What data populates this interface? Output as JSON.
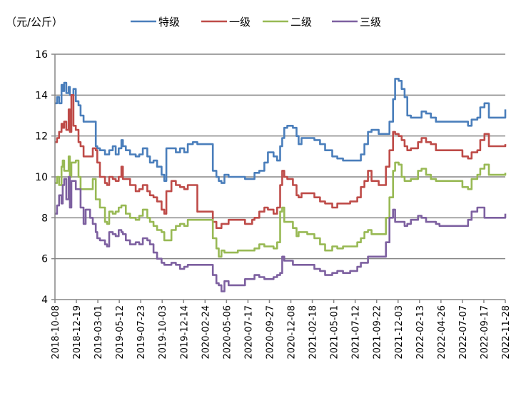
{
  "chart_data": {
    "type": "line",
    "unit_label": "（元/公斤）",
    "ylim": [
      4,
      16
    ],
    "yticks": [
      "4",
      "6",
      "8",
      "10",
      "12",
      "14",
      "16"
    ],
    "ytick_values": [
      4,
      6,
      8,
      10,
      12,
      14,
      16
    ],
    "grid": true,
    "legend_position": "top",
    "x_start_date": "2018-10-08",
    "x_unit": "days since 2018-10-08",
    "xlim": [
      0,
      1512
    ],
    "xtick_labels": [
      "2018-10-08",
      "2018-12-19",
      "2019-03-01",
      "2019-05-12",
      "2019-07-23",
      "2019-10-03",
      "2019-12-14",
      "2020-02-24",
      "2020-05-06",
      "2020-07-17",
      "2020-09-27",
      "2020-12-08",
      "2021-02-18",
      "2021-05-01",
      "2021-07-12",
      "2021-09-22",
      "2021-12-03",
      "2022-02-13",
      "2022-04-26",
      "2022-07-07",
      "2022-09-17",
      "2022-11-28"
    ],
    "xtick_days": [
      0,
      72,
      144,
      216,
      288,
      360,
      432,
      504,
      576,
      648,
      720,
      792,
      864,
      936,
      1008,
      1080,
      1152,
      1224,
      1296,
      1368,
      1440,
      1512
    ],
    "x": [
      0,
      7,
      14,
      22,
      26,
      31,
      38,
      46,
      50,
      55,
      62,
      70,
      79,
      86,
      96,
      103,
      118,
      127,
      137,
      142,
      151,
      168,
      175,
      182,
      194,
      204,
      214,
      223,
      228,
      238,
      252,
      271,
      283,
      295,
      310,
      319,
      331,
      343,
      358,
      367,
      374,
      391,
      406,
      420,
      434,
      446,
      463,
      478,
      530,
      542,
      550,
      559,
      569,
      583,
      614,
      638,
      662,
      670,
      686,
      703,
      715,
      734,
      746,
      756,
      763,
      770,
      780,
      799,
      811,
      818,
      828,
      847,
      871,
      890,
      907,
      931,
      948,
      967,
      991,
      1015,
      1027,
      1039,
      1051,
      1063,
      1087,
      1111,
      1123,
      1135,
      1142,
      1154,
      1164,
      1174,
      1183,
      1195,
      1219,
      1231,
      1246,
      1262,
      1279,
      1291,
      1351,
      1368,
      1387,
      1399,
      1418,
      1428,
      1442,
      1457,
      1483,
      1512
    ],
    "series": [
      {
        "name": "特级",
        "color": "#4a7ebb",
        "values": [
          13.6,
          13.9,
          13.6,
          14.5,
          14.2,
          14.6,
          14.1,
          14.4,
          14.0,
          14.0,
          14.3,
          13.7,
          13.5,
          13.0,
          12.7,
          12.7,
          12.7,
          12.7,
          11.5,
          11.4,
          11.3,
          11.1,
          11.1,
          11.3,
          11.5,
          11.1,
          11.4,
          11.8,
          11.5,
          11.3,
          11.1,
          11.0,
          11.1,
          11.4,
          11.0,
          10.7,
          10.8,
          10.5,
          10.1,
          9.8,
          11.4,
          11.4,
          11.2,
          11.4,
          11.2,
          11.6,
          11.7,
          11.6,
          10.3,
          10.0,
          9.8,
          9.7,
          10.1,
          10.0,
          10.0,
          9.9,
          9.9,
          10.2,
          10.3,
          10.7,
          11.2,
          11.0,
          10.8,
          11.5,
          11.9,
          12.4,
          12.5,
          12.4,
          12.0,
          11.6,
          11.9,
          11.9,
          11.8,
          11.6,
          11.3,
          11.0,
          10.9,
          10.8,
          10.8,
          10.8,
          11.1,
          11.6,
          12.2,
          12.3,
          12.1,
          12.1,
          12.7,
          13.8,
          14.8,
          14.7,
          14.3,
          13.9,
          13.0,
          12.9,
          12.9,
          13.2,
          13.1,
          12.9,
          12.7,
          12.7,
          12.7,
          12.7,
          12.5,
          12.8,
          12.9,
          13.4,
          13.6,
          12.9,
          12.9,
          13.3
        ]
      },
      {
        "name": "一级",
        "color": "#be4b48",
        "values": [
          11.7,
          11.9,
          12.2,
          12.6,
          12.4,
          12.7,
          12.3,
          13.3,
          12.2,
          14.0,
          12.5,
          12.3,
          11.7,
          11.5,
          11.0,
          11.0,
          11.0,
          11.4,
          11.3,
          10.7,
          10.0,
          9.7,
          9.6,
          10.0,
          9.9,
          9.8,
          10.0,
          10.5,
          9.9,
          9.9,
          9.6,
          9.3,
          9.4,
          9.6,
          9.3,
          9.1,
          9.0,
          8.8,
          8.4,
          8.2,
          9.3,
          9.8,
          9.6,
          9.5,
          9.4,
          9.6,
          9.6,
          8.3,
          7.8,
          7.5,
          7.5,
          7.7,
          7.7,
          7.9,
          7.9,
          7.7,
          7.9,
          8.0,
          8.3,
          8.5,
          8.4,
          8.2,
          8.5,
          9.6,
          10.3,
          10.0,
          9.9,
          9.6,
          9.1,
          9.0,
          9.2,
          9.2,
          9.0,
          8.8,
          8.7,
          8.5,
          8.7,
          8.7,
          8.8,
          9.0,
          9.5,
          9.8,
          10.3,
          9.8,
          9.6,
          10.5,
          11.3,
          12.2,
          12.1,
          12.0,
          11.8,
          11.5,
          11.3,
          11.4,
          11.7,
          11.9,
          11.7,
          11.6,
          11.3,
          11.3,
          11.3,
          11.0,
          10.9,
          11.2,
          11.3,
          11.8,
          12.1,
          11.5,
          11.5,
          11.6
        ]
      },
      {
        "name": "二级",
        "color": "#98b954",
        "values": [
          9.7,
          10.0,
          9.6,
          10.5,
          10.8,
          10.3,
          10.3,
          11.0,
          10.0,
          10.7,
          10.7,
          10.8,
          10.0,
          9.4,
          9.4,
          9.4,
          9.4,
          9.9,
          8.9,
          8.9,
          8.5,
          7.8,
          7.7,
          8.3,
          8.2,
          8.3,
          8.5,
          8.6,
          8.6,
          8.2,
          8.0,
          7.9,
          8.1,
          8.4,
          8.0,
          7.8,
          7.6,
          7.4,
          7.3,
          6.9,
          6.9,
          7.4,
          7.6,
          7.7,
          7.6,
          7.9,
          7.9,
          7.9,
          7.0,
          6.5,
          6.1,
          6.4,
          6.3,
          6.3,
          6.4,
          6.4,
          6.4,
          6.5,
          6.7,
          6.6,
          6.6,
          6.5,
          6.8,
          8.3,
          8.5,
          7.8,
          7.8,
          7.5,
          7.1,
          7.3,
          7.3,
          7.2,
          7.0,
          6.7,
          6.4,
          6.6,
          6.5,
          6.6,
          6.6,
          6.8,
          7.0,
          7.3,
          7.4,
          7.2,
          7.2,
          8.0,
          9.0,
          10.3,
          10.7,
          10.6,
          10.0,
          9.8,
          9.8,
          9.9,
          10.3,
          10.4,
          10.1,
          9.9,
          9.8,
          9.8,
          9.8,
          9.5,
          9.4,
          9.9,
          10.1,
          10.4,
          10.6,
          10.1,
          10.1,
          10.2
        ]
      },
      {
        "name": "三级",
        "color": "#7d60a0",
        "values": [
          8.2,
          8.6,
          9.1,
          8.7,
          9.6,
          9.9,
          8.9,
          10.0,
          8.5,
          9.8,
          9.8,
          9.4,
          9.4,
          8.5,
          7.7,
          8.4,
          8.0,
          7.7,
          7.3,
          7.0,
          6.9,
          6.7,
          6.6,
          7.3,
          7.2,
          7.1,
          7.4,
          7.3,
          7.2,
          6.9,
          6.7,
          6.8,
          6.7,
          7.0,
          6.9,
          6.7,
          6.3,
          6.0,
          5.8,
          5.7,
          5.7,
          5.8,
          5.7,
          5.5,
          5.6,
          5.7,
          5.7,
          5.7,
          5.2,
          4.8,
          4.7,
          4.4,
          4.9,
          4.7,
          4.7,
          5.0,
          5.0,
          5.2,
          5.1,
          5.0,
          5.0,
          5.1,
          5.2,
          5.3,
          6.1,
          5.9,
          5.9,
          5.7,
          5.7,
          5.7,
          5.7,
          5.7,
          5.5,
          5.4,
          5.2,
          5.3,
          5.4,
          5.3,
          5.4,
          5.6,
          5.8,
          5.8,
          6.1,
          6.1,
          6.1,
          6.8,
          8.0,
          8.4,
          7.8,
          7.8,
          7.8,
          7.6,
          7.7,
          7.9,
          8.1,
          8.0,
          7.8,
          7.8,
          7.7,
          7.6,
          7.6,
          7.6,
          7.9,
          8.3,
          8.5,
          8.5,
          8.0,
          8.0,
          8.0,
          8.2
        ]
      }
    ]
  }
}
